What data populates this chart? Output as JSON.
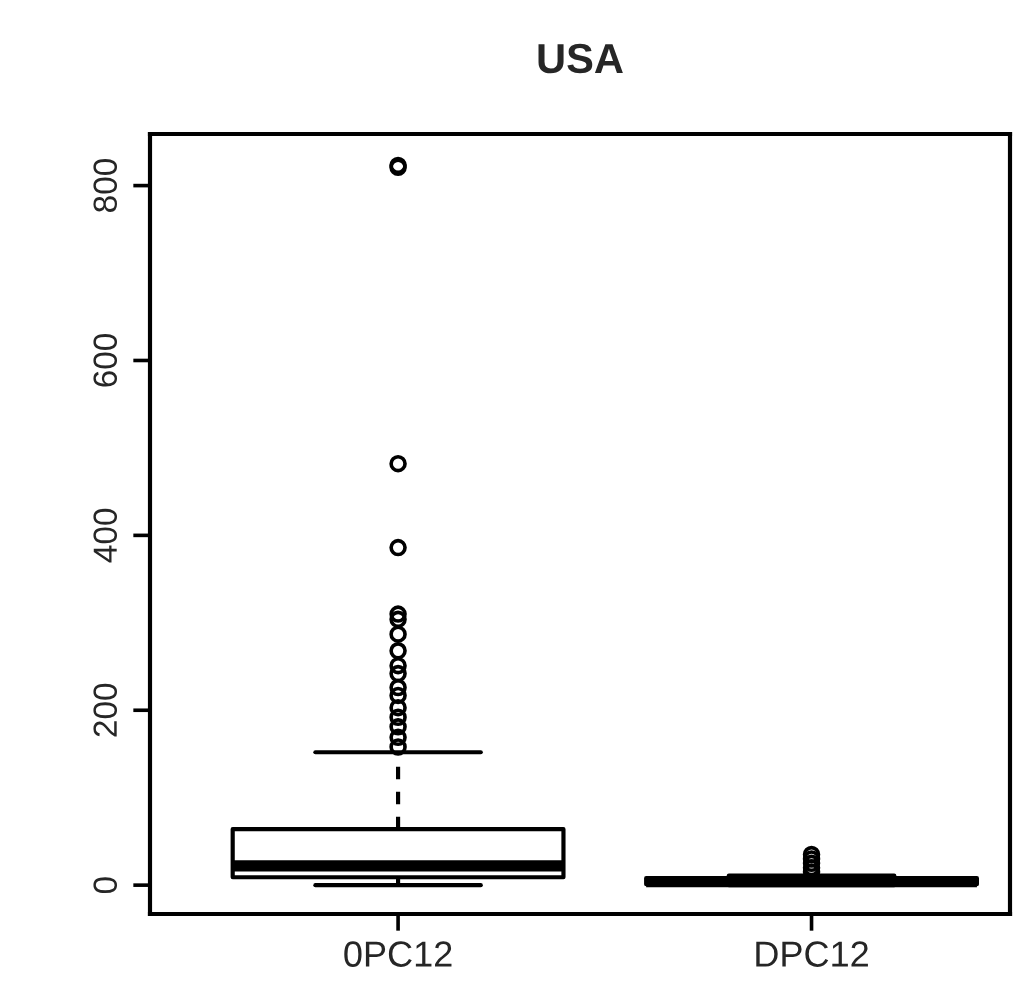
{
  "chart_data": {
    "type": "box",
    "title": "USA",
    "categories": [
      "0PC12",
      "DPC12"
    ],
    "boxes": [
      {
        "low": 0,
        "q1": 9,
        "median": 22,
        "q3": 64,
        "high": 152,
        "outliers": [
          823,
          821,
          482,
          386,
          310,
          304,
          287,
          268,
          251,
          242,
          226,
          217,
          203,
          192,
          181,
          169,
          158
        ]
      },
      {
        "low": 0,
        "q1": 1,
        "median": 4,
        "q3": 8,
        "high": 11,
        "outliers": [
          15,
          20,
          25,
          30,
          35
        ]
      }
    ],
    "ylim": [
      -33,
      859
    ],
    "yticks": [
      0,
      200,
      400,
      600,
      800
    ],
    "grid": false
  }
}
